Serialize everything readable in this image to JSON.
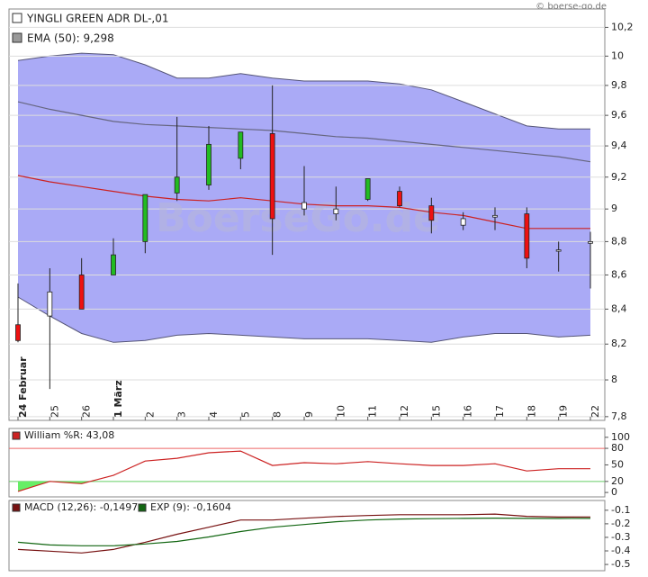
{
  "copyright": "© boerse-go.de",
  "watermark": "BoerseGo.de",
  "chart_data": [
    {
      "type": "candlestick",
      "title": "YINGLI GREEN ADR   DL-,01",
      "categories": [
        "24 Februar",
        "25",
        "26",
        "1 März",
        "2",
        "3",
        "4",
        "5",
        "8",
        "9",
        "10",
        "11",
        "12",
        "15",
        "16",
        "17",
        "18",
        "19",
        "22"
      ],
      "open": [
        8.31,
        8.36,
        8.6,
        8.6,
        8.8,
        9.1,
        9.15,
        9.32,
        9.48,
        9.0,
        8.97,
        9.06,
        9.11,
        9.02,
        8.9,
        8.95,
        8.97,
        8.75,
        8.79
      ],
      "high": [
        8.55,
        8.64,
        8.7,
        8.82,
        9.09,
        9.59,
        9.53,
        9.49,
        9.8,
        9.27,
        9.14,
        9.19,
        9.14,
        9.07,
        8.98,
        9.01,
        9.01,
        8.8,
        8.86
      ],
      "low": [
        8.21,
        7.95,
        8.4,
        8.6,
        8.73,
        9.05,
        9.12,
        9.25,
        8.72,
        8.96,
        8.93,
        9.05,
        9.01,
        8.85,
        8.87,
        8.87,
        8.64,
        8.62,
        8.52
      ],
      "close": [
        8.22,
        8.5,
        8.4,
        8.72,
        9.09,
        9.2,
        9.41,
        9.49,
        8.94,
        9.04,
        9.0,
        9.19,
        9.02,
        8.93,
        8.94,
        8.96,
        8.7,
        8.75,
        8.8
      ],
      "candle_colors": [
        "#ee1111",
        "#ffffff",
        "#ee1111",
        "#22bb22",
        "#22bb22",
        "#22bb22",
        "#22bb22",
        "#22bb22",
        "#ee1111",
        "#ffffff",
        "#ffffff",
        "#22bb22",
        "#ee1111",
        "#ee1111",
        "#ffffff",
        "#ffffff",
        "#ee1111",
        "#ffffff",
        "#ffffff"
      ],
      "band": {
        "color": "#aaaaf6",
        "upper": [
          9.97,
          10.0,
          10.02,
          10.01,
          9.94,
          9.85,
          9.85,
          9.88,
          9.85,
          9.83,
          9.83,
          9.83,
          9.81,
          9.77,
          9.69,
          9.61,
          9.53,
          9.51,
          9.51
        ],
        "lower": [
          8.47,
          8.36,
          8.26,
          8.21,
          8.22,
          8.25,
          8.26,
          8.25,
          8.24,
          8.23,
          8.23,
          8.23,
          8.22,
          8.21,
          8.24,
          8.26,
          8.26,
          8.24,
          8.25
        ]
      },
      "ema": {
        "name": "EMA (50): 9,298",
        "color": "#666680",
        "values": [
          9.69,
          9.64,
          9.6,
          9.56,
          9.54,
          9.53,
          9.52,
          9.51,
          9.5,
          9.48,
          9.46,
          9.45,
          9.43,
          9.41,
          9.39,
          9.37,
          9.35,
          9.33,
          9.298
        ]
      },
      "average": {
        "color": "#cc2222",
        "values": [
          9.21,
          9.17,
          9.14,
          9.11,
          9.08,
          9.06,
          9.05,
          9.07,
          9.05,
          9.03,
          9.02,
          9.02,
          9.01,
          8.98,
          8.96,
          8.92,
          8.88,
          8.88,
          8.88
        ]
      },
      "log_scale": true,
      "grid": true,
      "ylim": [
        7.78,
        10.33
      ],
      "yticks": [
        {
          "value": 7.8,
          "label": "7,8"
        },
        8,
        {
          "value": 8.2,
          "label": "8,2"
        },
        {
          "value": 8.4,
          "label": "8,4"
        },
        {
          "value": 8.6,
          "label": "8,6"
        },
        {
          "value": 8.8,
          "label": "8,8"
        },
        9,
        {
          "value": 9.2,
          "label": "9,2"
        },
        {
          "value": 9.4,
          "label": "9,4"
        },
        {
          "value": 9.6,
          "label": "9,6"
        },
        {
          "value": 9.8,
          "label": "9,8"
        },
        10,
        {
          "value": 10.2,
          "label": "10,2"
        }
      ]
    },
    {
      "type": "line",
      "series": [
        {
          "name": "William %R: 43,08",
          "color": "#cc2222",
          "values": [
            2,
            20,
            16,
            31,
            57,
            62,
            72,
            75,
            49,
            54,
            52,
            56,
            52,
            49,
            49,
            52,
            39,
            43,
            43.08
          ]
        }
      ],
      "fill_below": {
        "value": 20,
        "color": "#66ee66"
      },
      "reference_lines": [
        {
          "value": 80,
          "color": "#ee6666"
        },
        {
          "value": 20,
          "color": "#66cc66"
        }
      ],
      "ylim": [
        -8,
        116
      ],
      "yticks": [
        0,
        20,
        50,
        80,
        100
      ]
    },
    {
      "type": "line",
      "series": [
        {
          "name": "MACD (12,26): -0,1497",
          "color": "#771111",
          "values": [
            -0.389,
            -0.402,
            -0.415,
            -0.389,
            -0.336,
            -0.277,
            -0.225,
            -0.172,
            -0.172,
            -0.159,
            -0.146,
            -0.139,
            -0.133,
            -0.133,
            -0.133,
            -0.128,
            -0.145,
            -0.15,
            -0.1497
          ]
        },
        {
          "name": "EXP (9): -0,1604",
          "color": "#116611",
          "values": [
            -0.336,
            -0.356,
            -0.362,
            -0.362,
            -0.349,
            -0.33,
            -0.297,
            -0.257,
            -0.225,
            -0.205,
            -0.185,
            -0.172,
            -0.165,
            -0.162,
            -0.16,
            -0.158,
            -0.16,
            -0.161,
            -0.1604
          ]
        }
      ],
      "ylim": [
        -0.546,
        -0.028
      ],
      "yticks": [
        -0.5,
        -0.4,
        -0.3,
        -0.2,
        -0.1
      ]
    }
  ]
}
